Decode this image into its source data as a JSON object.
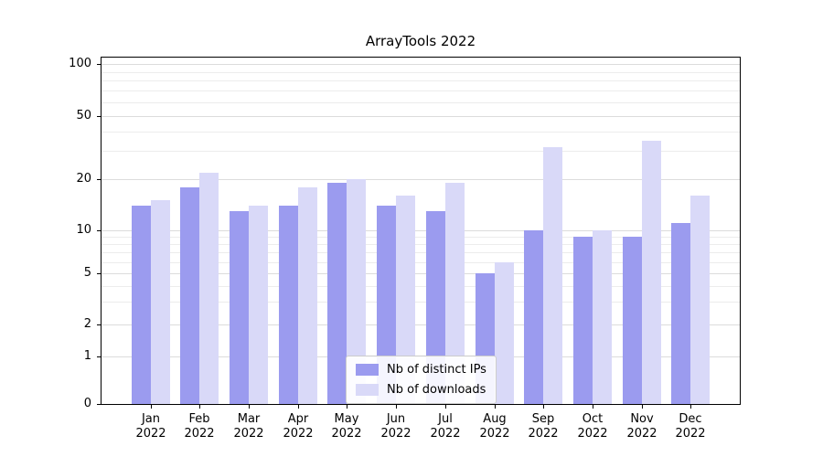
{
  "chart_data": {
    "type": "bar",
    "title": "ArrayTools 2022",
    "categories": [
      "Jan",
      "Feb",
      "Mar",
      "Apr",
      "May",
      "Jun",
      "Jul",
      "Aug",
      "Sep",
      "Oct",
      "Nov",
      "Dec"
    ],
    "year_label": "2022",
    "series": [
      {
        "name": "Nb of distinct IPs",
        "color": "#9b9bef",
        "values": [
          14,
          18,
          13,
          14,
          19,
          14,
          13,
          5,
          10,
          9,
          9,
          11
        ]
      },
      {
        "name": "Nb of downloads",
        "color": "#d9d9f8",
        "values": [
          15,
          22,
          14,
          18,
          20,
          16,
          19,
          6,
          32,
          10,
          35,
          16
        ]
      }
    ],
    "y_ticks": [
      100,
      50,
      20,
      10,
      5,
      2,
      1,
      0
    ],
    "y_scale": "log-like",
    "ylim": [
      0,
      100
    ],
    "xlabel": "",
    "ylabel": "",
    "grid": "horizontal",
    "legend_position": "lower center"
  }
}
